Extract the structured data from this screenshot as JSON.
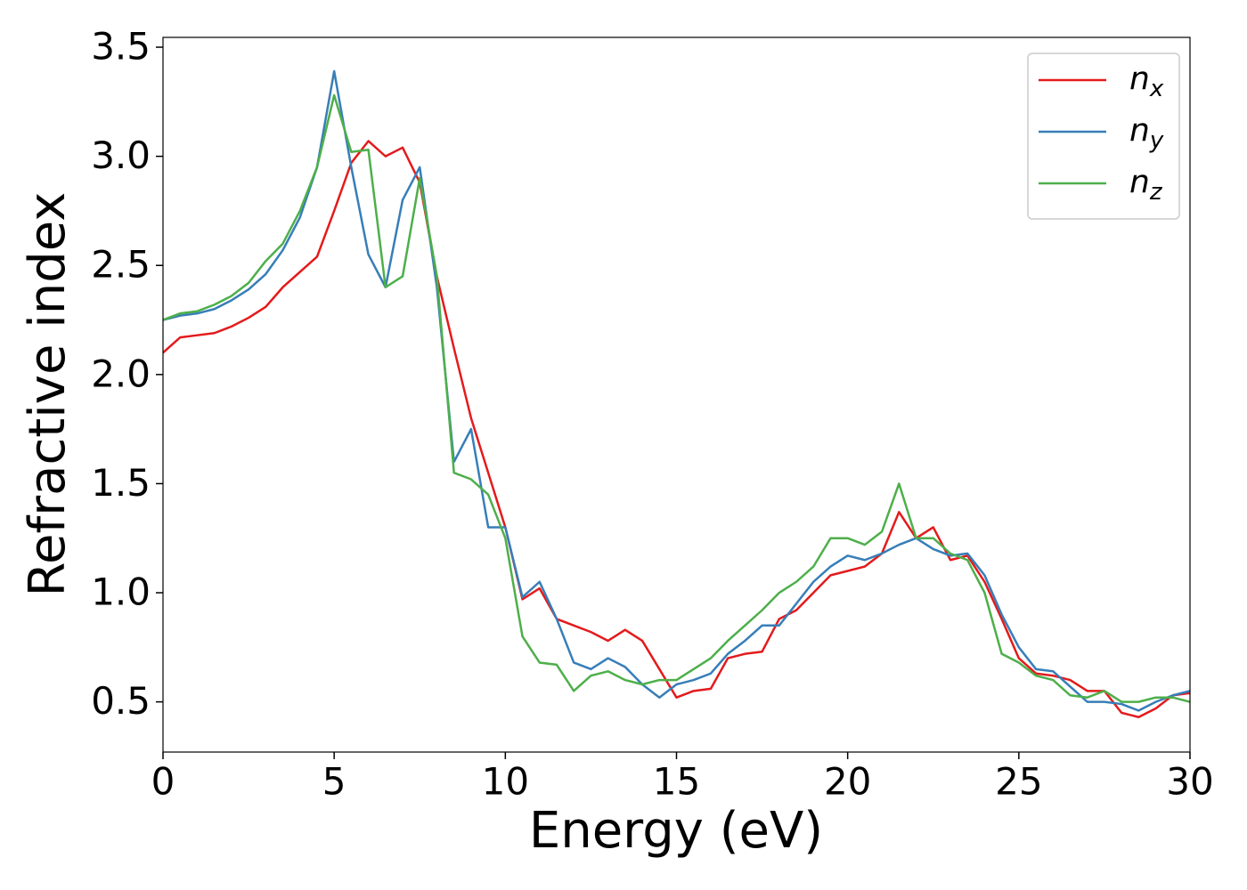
{
  "chart_data": {
    "type": "line",
    "xlabel": "Energy (eV)",
    "ylabel": "Refractive index",
    "x": [
      0,
      0.5,
      1,
      1.5,
      2,
      2.5,
      3,
      3.5,
      4,
      4.5,
      5,
      5.5,
      6,
      6.5,
      7,
      7.5,
      8,
      8.5,
      9,
      9.5,
      10,
      10.5,
      11,
      11.5,
      12,
      12.5,
      13,
      13.5,
      14,
      14.5,
      15,
      15.5,
      16,
      16.5,
      17,
      17.5,
      18,
      18.5,
      19,
      19.5,
      20,
      20.5,
      21,
      21.5,
      22,
      22.5,
      23,
      23.5,
      24,
      24.5,
      25,
      25.5,
      26,
      26.5,
      27,
      27.5,
      28,
      28.5,
      29,
      29.5,
      30
    ],
    "series": [
      {
        "name": "nx",
        "color": "#e41a1c",
        "values": [
          2.1,
          2.17,
          2.18,
          2.19,
          2.22,
          2.26,
          2.31,
          2.4,
          2.47,
          2.54,
          2.75,
          2.97,
          3.07,
          3.0,
          3.04,
          2.88,
          2.45,
          2.12,
          1.8,
          1.55,
          1.3,
          0.97,
          1.02,
          0.88,
          0.85,
          0.82,
          0.78,
          0.83,
          0.78,
          0.65,
          0.52,
          0.55,
          0.56,
          0.7,
          0.72,
          0.73,
          0.88,
          0.92,
          1.0,
          1.08,
          1.1,
          1.12,
          1.18,
          1.37,
          1.25,
          1.3,
          1.15,
          1.17,
          1.05,
          0.88,
          0.7,
          0.63,
          0.62,
          0.6,
          0.55,
          0.55,
          0.45,
          0.43,
          0.47,
          0.53,
          0.54
        ]
      },
      {
        "name": "ny",
        "color": "#377eb8",
        "values": [
          2.25,
          2.27,
          2.28,
          2.3,
          2.34,
          2.39,
          2.46,
          2.57,
          2.72,
          2.95,
          3.39,
          2.95,
          2.55,
          2.4,
          2.8,
          2.95,
          2.4,
          1.6,
          1.75,
          1.3,
          1.3,
          0.98,
          1.05,
          0.88,
          0.68,
          0.65,
          0.7,
          0.66,
          0.58,
          0.52,
          0.58,
          0.6,
          0.63,
          0.72,
          0.78,
          0.85,
          0.85,
          0.95,
          1.05,
          1.12,
          1.17,
          1.15,
          1.18,
          1.22,
          1.25,
          1.2,
          1.17,
          1.18,
          1.08,
          0.9,
          0.75,
          0.65,
          0.64,
          0.57,
          0.5,
          0.5,
          0.49,
          0.46,
          0.5,
          0.53,
          0.55
        ]
      },
      {
        "name": "nz",
        "color": "#4daf4a",
        "values": [
          2.25,
          2.28,
          2.29,
          2.32,
          2.36,
          2.42,
          2.52,
          2.6,
          2.75,
          2.95,
          3.28,
          3.02,
          3.03,
          2.4,
          2.45,
          2.9,
          2.45,
          1.55,
          1.52,
          1.45,
          1.25,
          0.8,
          0.68,
          0.67,
          0.55,
          0.62,
          0.64,
          0.6,
          0.58,
          0.6,
          0.6,
          0.65,
          0.7,
          0.78,
          0.85,
          0.92,
          1.0,
          1.05,
          1.12,
          1.25,
          1.25,
          1.22,
          1.28,
          1.5,
          1.25,
          1.25,
          1.18,
          1.15,
          1.0,
          0.72,
          0.68,
          0.62,
          0.6,
          0.53,
          0.52,
          0.55,
          0.5,
          0.5,
          0.52,
          0.52,
          0.5
        ]
      }
    ],
    "xlim": [
      0,
      30
    ],
    "xticks": [
      0,
      5,
      10,
      15,
      20,
      25,
      30
    ],
    "ylim": [
      0.27,
      3.545
    ],
    "yticks": [
      0.5,
      {
        "value": 1,
        "label": "1.0"
      },
      1.5,
      {
        "value": 2,
        "label": "2.0"
      },
      2.5,
      {
        "value": 3,
        "label": "3.0"
      },
      3.5
    ],
    "legend": "upper right"
  }
}
